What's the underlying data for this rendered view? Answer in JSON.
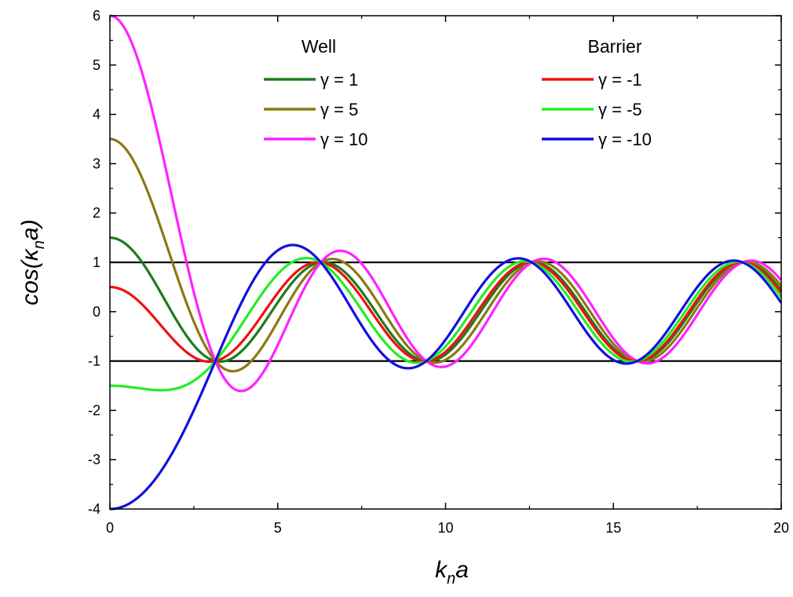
{
  "chart_data": {
    "type": "line",
    "xlabel": {
      "main": "k",
      "sub": "n",
      "tail": "a"
    },
    "ylabel": {
      "pre": "cos(",
      "main": "κ",
      "sub": "n",
      "tail": "a)"
    },
    "xlim": [
      0,
      20
    ],
    "ylim": [
      -4,
      6
    ],
    "xticks": [
      "0",
      "5",
      "10",
      "15",
      "20"
    ],
    "yticks": [
      "6",
      "5",
      "4",
      "3",
      "2",
      "1",
      "0",
      "-1",
      "-2",
      "-3",
      "-4"
    ],
    "grid": false,
    "legend_placement": "top",
    "legend_groups": [
      {
        "title": "Well",
        "entries": [
          "γ = 1",
          "γ = 5",
          "γ = 10"
        ]
      },
      {
        "title": "Barrier",
        "entries": [
          "γ = -1",
          "γ = -5",
          "γ = -10"
        ]
      }
    ],
    "reference_lines": [
      {
        "y": 1,
        "color": "#000000"
      },
      {
        "y": -1,
        "color": "#000000"
      }
    ],
    "function": "cos(x) + (gamma/2) * sin(x)/x",
    "series": [
      {
        "name": "γ = 1",
        "gamma": 1,
        "color": "#1e7b1e"
      },
      {
        "name": "γ = 5",
        "gamma": 5,
        "color": "#8a7a12"
      },
      {
        "name": "γ = 10",
        "gamma": 10,
        "color": "#ff22ff"
      },
      {
        "name": "γ = -1",
        "gamma": -1,
        "color": "#ee1111"
      },
      {
        "name": "γ = -5",
        "gamma": -5,
        "color": "#22ee22"
      },
      {
        "name": "γ = -10",
        "gamma": -10,
        "color": "#1111dd"
      }
    ]
  }
}
